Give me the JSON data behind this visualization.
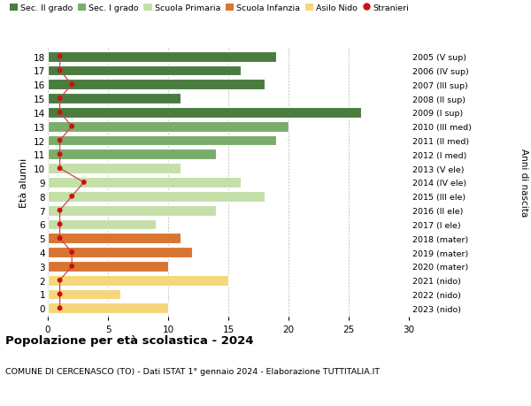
{
  "ages": [
    18,
    17,
    16,
    15,
    14,
    13,
    12,
    11,
    10,
    9,
    8,
    7,
    6,
    5,
    4,
    3,
    2,
    1,
    0
  ],
  "bar_values": [
    19,
    16,
    18,
    11,
    26,
    20,
    19,
    14,
    11,
    16,
    18,
    14,
    9,
    11,
    12,
    10,
    15,
    6,
    10
  ],
  "stranieri": [
    1,
    1,
    2,
    1,
    1,
    2,
    1,
    1,
    1,
    3,
    2,
    1,
    1,
    1,
    2,
    2,
    1,
    1,
    1
  ],
  "right_labels": [
    "2005 (V sup)",
    "2006 (IV sup)",
    "2007 (III sup)",
    "2008 (II sup)",
    "2009 (I sup)",
    "2010 (III med)",
    "2011 (II med)",
    "2012 (I med)",
    "2013 (V ele)",
    "2014 (IV ele)",
    "2015 (III ele)",
    "2016 (II ele)",
    "2017 (I ele)",
    "2018 (mater)",
    "2019 (mater)",
    "2020 (mater)",
    "2021 (nido)",
    "2022 (nido)",
    "2023 (nido)"
  ],
  "bar_colors": {
    "sec2": "#4a7c3f",
    "sec1": "#7aad6a",
    "primaria": "#c5dfa8",
    "infanzia": "#d97532",
    "nido": "#f5d77a"
  },
  "color_map": [
    "sec2",
    "sec2",
    "sec2",
    "sec2",
    "sec2",
    "sec1",
    "sec1",
    "sec1",
    "primaria",
    "primaria",
    "primaria",
    "primaria",
    "primaria",
    "infanzia",
    "infanzia",
    "infanzia",
    "nido",
    "nido",
    "nido"
  ],
  "stranieri_color": "#cc1111",
  "stranieri_line_color": "#cc4444",
  "title": "Popolazione per età scolastica - 2024",
  "subtitle": "COMUNE DI CERCENASCO (TO) - Dati ISTAT 1° gennaio 2024 - Elaborazione TUTTITALIA.IT",
  "ylabel": "Età alunni",
  "right_axis_label": "Anni di nascita",
  "xlim": [
    0,
    30
  ],
  "xticks": [
    0,
    5,
    10,
    15,
    20,
    25,
    30
  ],
  "legend_entries": [
    "Sec. II grado",
    "Sec. I grado",
    "Scuola Primaria",
    "Scuola Infanzia",
    "Asilo Nido",
    "Stranieri"
  ],
  "legend_colors": [
    "#4a7c3f",
    "#7aad6a",
    "#c5dfa8",
    "#d97532",
    "#f5d77a",
    "#cc1111"
  ],
  "background_color": "#ffffff",
  "grid_color": "#bbbbbb"
}
